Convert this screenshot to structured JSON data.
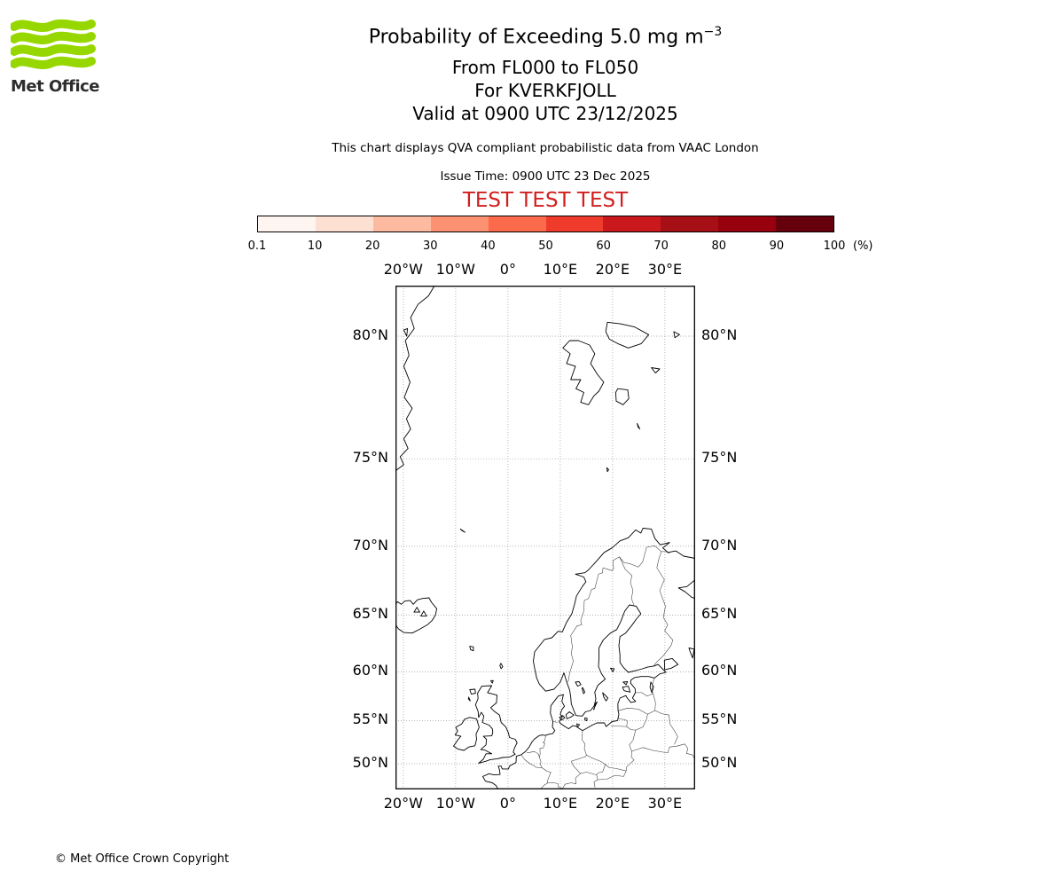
{
  "logo": {
    "text": "Met Office"
  },
  "header": {
    "title": "Probability of Exceeding 5.0 mg m",
    "title_sup": "−3",
    "line_levels": "From FL000 to FL050",
    "line_volcano": "For KVERKFJOLL",
    "line_valid": "Valid at 0900 UTC 23/12/2025",
    "description": "This chart displays QVA compliant probabilistic data from VAAC London",
    "issue_time": "Issue Time: 0900 UTC 23 Dec 2025",
    "test_banner": "TEST TEST TEST"
  },
  "colorbar": {
    "tick_labels": [
      "0.1",
      "10",
      "20",
      "30",
      "40",
      "50",
      "60",
      "70",
      "80",
      "90",
      "100"
    ],
    "unit_label": "(%)",
    "segment_colors": [
      "#fff5f0",
      "#fee0d2",
      "#fcbba1",
      "#fc9272",
      "#fb6a4a",
      "#ef3b2c",
      "#cb181d",
      "#a50f15",
      "#99000d",
      "#67000d"
    ]
  },
  "map": {
    "lon_tick_labels": [
      "20°W",
      "10°W",
      "0°",
      "10°E",
      "20°E",
      "30°E"
    ],
    "lat_tick_labels": [
      "80°N",
      "75°N",
      "70°N",
      "65°N",
      "60°N",
      "55°N",
      "50°N"
    ]
  },
  "footer": {
    "copyright": "© Met Office Crown Copyright"
  },
  "colors": {
    "test_red": "#d21e1e",
    "logo_green": "#97d700"
  }
}
